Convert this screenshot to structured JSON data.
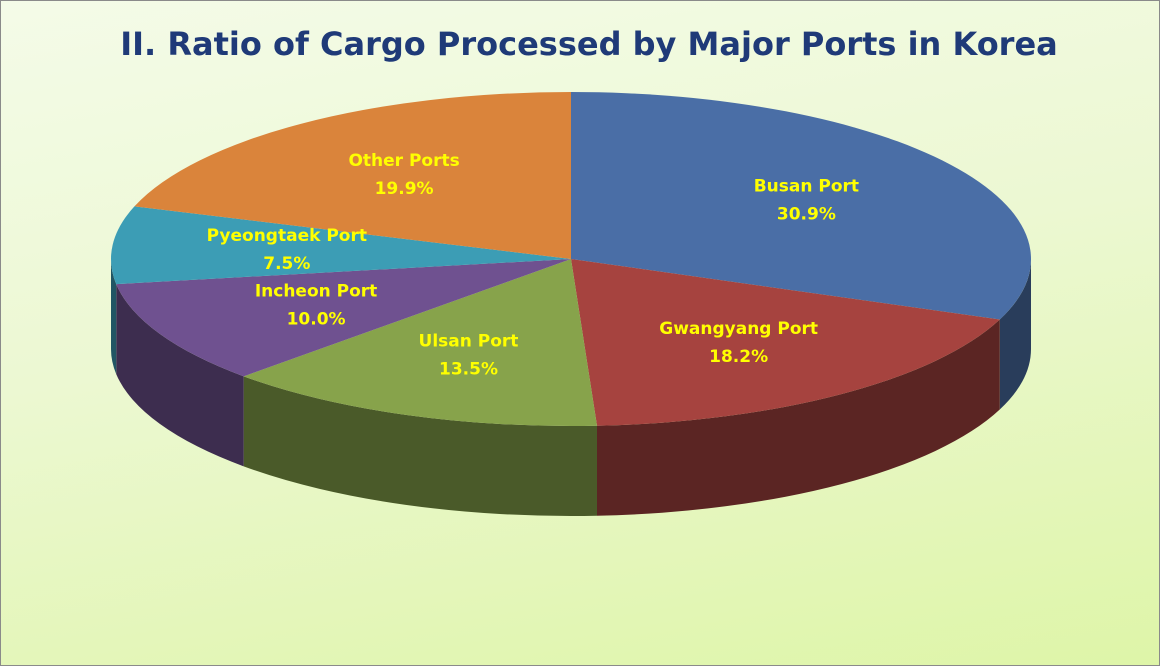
{
  "chart_data": {
    "type": "pie3d",
    "title": "II. Ratio of Cargo Processed by Major Ports in Korea",
    "categories": [
      "Busan Port",
      "Gwangyang Port",
      "Ulsan Port",
      "Incheon Port",
      "Pyeongtaek Port",
      "Other Ports"
    ],
    "values": [
      30.9,
      18.2,
      13.5,
      10.0,
      7.5,
      19.9
    ],
    "value_labels": [
      "30.9%",
      "18.2%",
      "13.5%",
      "10.0%",
      "7.5%",
      "19.9%"
    ],
    "colors": [
      "#4a6ea6",
      "#a6433f",
      "#87a34b",
      "#6f5190",
      "#3c9db5",
      "#da843b"
    ]
  }
}
